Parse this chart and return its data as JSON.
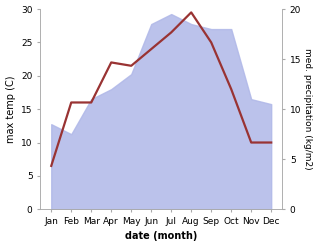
{
  "months": [
    "Jan",
    "Feb",
    "Mar",
    "Apr",
    "May",
    "Jun",
    "Jul",
    "Aug",
    "Sep",
    "Oct",
    "Nov",
    "Dec"
  ],
  "temperature": [
    6.5,
    16.0,
    16.0,
    22.0,
    21.5,
    24.0,
    26.5,
    29.5,
    25.0,
    18.0,
    10.0,
    10.0
  ],
  "precipitation_raw": [
    8.5,
    7.5,
    11.0,
    12.0,
    13.5,
    18.5,
    19.5,
    18.5,
    18.0,
    18.0,
    11.0,
    10.5
  ],
  "temp_ylim": [
    0,
    30
  ],
  "precip_ylim": [
    0,
    20
  ],
  "temp_color": "#993333",
  "precip_fill_color": "#b0b8e8",
  "precip_fill_alpha": 0.85,
  "xlabel": "date (month)",
  "ylabel_left": "max temp (C)",
  "ylabel_right": "med. precipitation (kg/m2)",
  "background_color": "#ffffff",
  "temp_linewidth": 1.6,
  "label_fontsize": 7,
  "tick_fontsize": 6.5
}
